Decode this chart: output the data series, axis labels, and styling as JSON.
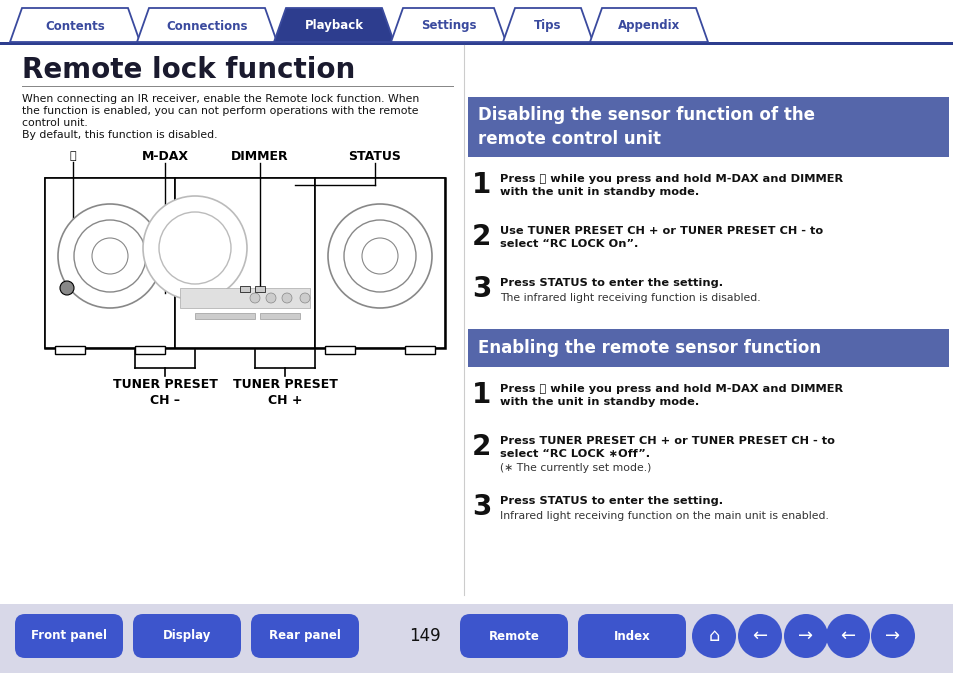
{
  "bg_color": "#ffffff",
  "tab_color_active": "#2d3d8e",
  "tab_color_inactive": "#ffffff",
  "tab_border_color": "#3a4a9e",
  "tab_labels": [
    "Contents",
    "Connections",
    "Playback",
    "Settings",
    "Tips",
    "Appendix"
  ],
  "tab_active_index": 2,
  "title": "Remote lock function",
  "title_color": "#1a1a2e",
  "intro_line1": "When connecting an IR receiver, enable the Remote lock function. When",
  "intro_line2": "the function is enabled, you can not perform operations with the remote",
  "intro_line3": "control unit.",
  "intro_line4": "By default, this function is disabled.",
  "section1_header_line1": "Disabling the sensor function of the",
  "section1_header_line2": "remote control unit",
  "section1_bg": "#5566aa",
  "section2_header": "Enabling the remote sensor function",
  "section2_bg": "#5566aa",
  "header_text_color": "#ffffff",
  "divider_color": "#2d3d8e",
  "bottom_btn_color": "#3d55cc",
  "bottom_btn_text_color": "#ffffff",
  "page_number": "149",
  "icon_home": "⌂",
  "icon_back": "←",
  "icon_fwd": "→"
}
